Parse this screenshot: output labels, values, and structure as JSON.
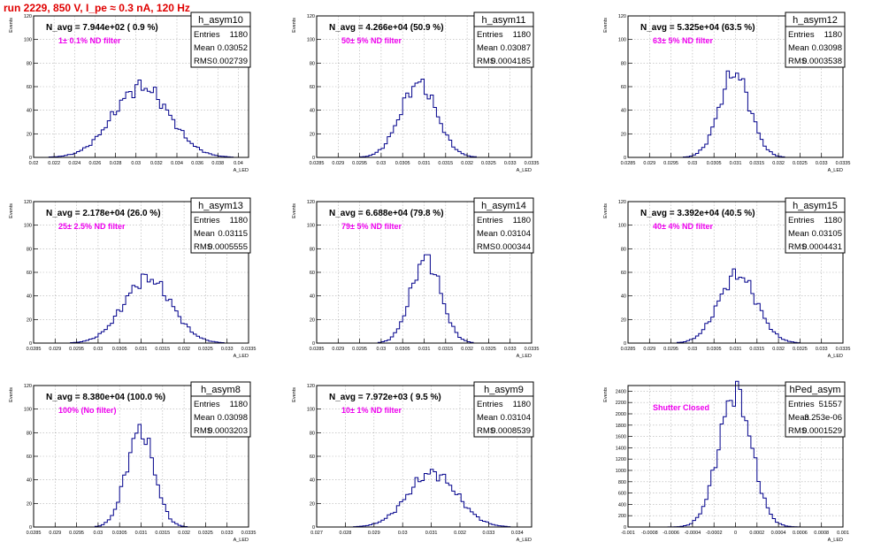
{
  "header": {
    "title": "run 2229,   850 V, I_pe ≈ 0.3 nA, 120 Hz"
  },
  "colors": {
    "title": "#e00000",
    "annotation": "#ee00ee",
    "histogram": "#00008b",
    "grid": "#b0b0b0"
  },
  "stats_labels": [
    "Entries",
    "Mean",
    "RMS"
  ],
  "x_axis_label": "A_LED",
  "y_axis_label": "Events",
  "chart_data": [
    {
      "type": "histogram",
      "name": "h_asym10",
      "navg": "N_avg = 7.944e+02 ( 0.9 %)",
      "note": "1± 0.1% ND filter",
      "stats": [
        "1180",
        "0.03052",
        "0.002739"
      ],
      "xlim": [
        0.02,
        0.041
      ],
      "ylim": [
        0,
        120
      ],
      "xticks": [
        "0.02",
        "0.022",
        "0.024",
        "0.026",
        "0.028",
        "0.03",
        "0.032",
        "0.034",
        "0.036",
        "0.038",
        "0.04"
      ],
      "yticks": [
        "0",
        "20",
        "40",
        "60",
        "80",
        "100",
        "120"
      ],
      "grid": true,
      "shape": {
        "mean": 0.03052,
        "rms": 0.002739,
        "peak": 60
      }
    },
    {
      "type": "histogram",
      "name": "h_asym11",
      "navg": "N_avg = 4.266e+04 (50.9 %)",
      "note": "50± 5% ND filter",
      "stats": [
        "1180",
        "0.03087",
        "0.0004185"
      ],
      "xlim": [
        0.0285,
        0.0335
      ],
      "ylim": [
        0,
        120
      ],
      "xticks": [
        "0.0285",
        "0.029",
        "0.0295",
        "0.03",
        "0.0305",
        "0.031",
        "0.0315",
        "0.032",
        "0.0325",
        "0.033",
        "0.0335"
      ],
      "yticks": [
        "0",
        "20",
        "40",
        "60",
        "80",
        "100",
        "120"
      ],
      "grid": true,
      "shape": {
        "mean": 0.03087,
        "rms": 0.0004185,
        "peak": 63
      }
    },
    {
      "type": "histogram",
      "name": "h_asym12",
      "navg": "N_avg = 5.325e+04 (63.5 %)",
      "note": "63± 5% ND filter",
      "stats": [
        "1180",
        "0.03098",
        "0.0003538"
      ],
      "xlim": [
        0.0285,
        0.0335
      ],
      "ylim": [
        0,
        120
      ],
      "xticks": [
        "0.0285",
        "0.029",
        "0.0295",
        "0.03",
        "0.0305",
        "0.031",
        "0.0315",
        "0.032",
        "0.0325",
        "0.033",
        "0.0335"
      ],
      "yticks": [
        "0",
        "20",
        "40",
        "60",
        "80",
        "100",
        "120"
      ],
      "grid": true,
      "shape": {
        "mean": 0.03098,
        "rms": 0.0003538,
        "peak": 72
      }
    },
    {
      "type": "histogram",
      "name": "h_asym13",
      "navg": "N_avg = 2.178e+04 (26.0 %)",
      "note": "25± 2.5% ND filter",
      "stats": [
        "1180",
        "0.03115",
        "0.0005555"
      ],
      "xlim": [
        0.0285,
        0.0335
      ],
      "ylim": [
        0,
        120
      ],
      "xticks": [
        "0.0285",
        "0.029",
        "0.0295",
        "0.03",
        "0.0305",
        "0.031",
        "0.0315",
        "0.032",
        "0.0325",
        "0.033",
        "0.0335"
      ],
      "yticks": [
        "0",
        "20",
        "40",
        "60",
        "80",
        "100",
        "120"
      ],
      "grid": true,
      "shape": {
        "mean": 0.03115,
        "rms": 0.0005555,
        "peak": 55
      }
    },
    {
      "type": "histogram",
      "name": "h_asym14",
      "navg": "N_avg = 6.688e+04 (79.8 %)",
      "note": "79± 5% ND filter",
      "stats": [
        "1180",
        "0.03104",
        "0.000344"
      ],
      "xlim": [
        0.0285,
        0.0335
      ],
      "ylim": [
        0,
        120
      ],
      "xticks": [
        "0.0285",
        "0.029",
        "0.0295",
        "0.03",
        "0.0305",
        "0.031",
        "0.0315",
        "0.032",
        "0.0325",
        "0.033",
        "0.0335"
      ],
      "yticks": [
        "0",
        "20",
        "40",
        "60",
        "80",
        "100",
        "120"
      ],
      "grid": true,
      "shape": {
        "mean": 0.03104,
        "rms": 0.000344,
        "peak": 72
      }
    },
    {
      "type": "histogram",
      "name": "h_asym15",
      "navg": "N_avg = 3.392e+04 (40.5 %)",
      "note": "40± 4% ND filter",
      "stats": [
        "1180",
        "0.03105",
        "0.0004431"
      ],
      "xlim": [
        0.0285,
        0.0335
      ],
      "ylim": [
        0,
        120
      ],
      "xticks": [
        "0.0285",
        "0.029",
        "0.0295",
        "0.03",
        "0.0305",
        "0.031",
        "0.0315",
        "0.032",
        "0.0325",
        "0.033",
        "0.0335"
      ],
      "yticks": [
        "0",
        "20",
        "40",
        "60",
        "80",
        "100",
        "120"
      ],
      "grid": true,
      "shape": {
        "mean": 0.03105,
        "rms": 0.0004431,
        "peak": 58
      }
    },
    {
      "type": "histogram",
      "name": "h_asym8",
      "navg": "N_avg = 8.380e+04 (100.0 %)",
      "note": "100% (No filter)",
      "stats": [
        "1180",
        "0.03098",
        "0.0003203"
      ],
      "xlim": [
        0.0285,
        0.0335
      ],
      "ylim": [
        0,
        120
      ],
      "xticks": [
        "0.0285",
        "0.029",
        "0.0295",
        "0.03",
        "0.0305",
        "0.031",
        "0.0315",
        "0.032",
        "0.0325",
        "0.033",
        "0.0335"
      ],
      "yticks": [
        "0",
        "20",
        "40",
        "60",
        "80",
        "100",
        "120"
      ],
      "grid": true,
      "shape": {
        "mean": 0.03098,
        "rms": 0.0003203,
        "peak": 82
      }
    },
    {
      "type": "histogram",
      "name": "h_asym9",
      "navg": "N_avg = 7.972e+03 ( 9.5 %)",
      "note": "10± 1% ND filter",
      "stats": [
        "1180",
        "0.03104",
        "0.0008539"
      ],
      "xlim": [
        0.027,
        0.0345
      ],
      "ylim": [
        0,
        120
      ],
      "xticks": [
        "0.027",
        "0.028",
        "0.029",
        "0.03",
        "0.031",
        "0.032",
        "0.033",
        "0.034"
      ],
      "yticks": [
        "0",
        "20",
        "40",
        "60",
        "80",
        "100",
        "120"
      ],
      "grid": true,
      "shape": {
        "mean": 0.03104,
        "rms": 0.0008539,
        "peak": 46
      }
    },
    {
      "type": "histogram",
      "name": "hPed_asym",
      "navg": "",
      "note": "Shutter Closed",
      "stats": [
        "51557",
        "-3.253e-06",
        "0.0001529"
      ],
      "xlim": [
        -0.001,
        0.001
      ],
      "ylim": [
        0,
        2500
      ],
      "xticks": [
        "-0.001",
        "-0.0008",
        "-0.0006",
        "-0.0004",
        "-0.0002",
        "0",
        "0.0002",
        "0.0004",
        "0.0006",
        "0.0008",
        "0.001"
      ],
      "yticks": [
        "0",
        "200",
        "400",
        "600",
        "800",
        "1000",
        "1200",
        "1400",
        "1600",
        "1800",
        "2000",
        "2200",
        "2400"
      ],
      "grid": true,
      "shape": {
        "mean": -3.253e-06,
        "rms": 0.0001529,
        "peak": 2380
      }
    }
  ]
}
